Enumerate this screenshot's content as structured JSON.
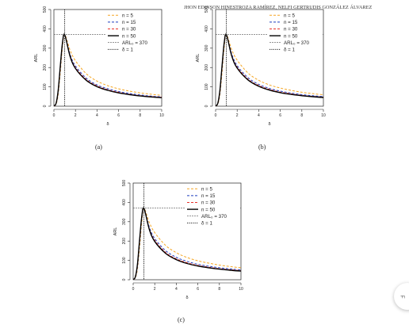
{
  "header": "JHON EDINSON HINESTROZA RAMÍREZ, NELFI GERTRUDIS GONZÁLEZ ÁLVAREZ",
  "side_widget": {
    "icon": "zoom-icon",
    "label": "F"
  },
  "colors": {
    "n5": "#f5a623",
    "n15": "#1f3fbf",
    "n30": "#e8332b",
    "n50": "#000000",
    "ref": "#555555"
  },
  "chart_data": [
    {
      "caption": "(a)",
      "type": "line",
      "xlabel": "δ",
      "ylabel": "ARL",
      "xlim": [
        0,
        10
      ],
      "ylim": [
        0,
        500
      ],
      "xticks": [
        0,
        2,
        4,
        6,
        8,
        10
      ],
      "yticks": [
        0,
        100,
        200,
        300,
        400,
        500
      ],
      "legend_position": "top-right",
      "legend": [
        "n = 5",
        "n = 15",
        "n = 30",
        "n = 50",
        "ARL₀ = 370",
        "δ = 1"
      ],
      "hline": 370,
      "vline": 1,
      "x": [
        0,
        0.2,
        0.4,
        0.6,
        0.8,
        1.0,
        1.5,
        2,
        3,
        4,
        5,
        6,
        7,
        8,
        9,
        10
      ],
      "series": [
        {
          "name": "n = 5",
          "values": [
            2,
            10,
            60,
            180,
            310,
            370,
            290,
            235,
            168,
            130,
            106,
            90,
            78,
            69,
            62,
            56
          ]
        },
        {
          "name": "n = 15",
          "values": [
            2,
            12,
            72,
            200,
            322,
            370,
            268,
            208,
            145,
            110,
            90,
            76,
            66,
            58,
            52,
            48
          ]
        },
        {
          "name": "n = 30",
          "values": [
            2,
            13,
            78,
            208,
            326,
            370,
            262,
            200,
            138,
            105,
            85,
            72,
            62,
            55,
            50,
            46
          ]
        },
        {
          "name": "n = 50",
          "values": [
            2,
            14,
            82,
            214,
            330,
            370,
            258,
            195,
            134,
            101,
            82,
            69,
            60,
            53,
            48,
            44
          ]
        }
      ]
    },
    {
      "caption": "(b)",
      "type": "line",
      "xlabel": "δ",
      "ylabel": "ARL",
      "xlim": [
        0,
        10
      ],
      "ylim": [
        0,
        500
      ],
      "xticks": [
        0,
        2,
        4,
        6,
        8,
        10
      ],
      "yticks": [
        0,
        100,
        200,
        300,
        400,
        500
      ],
      "legend_position": "top-right",
      "legend": [
        "n = 5",
        "n = 15",
        "n = 30",
        "n = 50",
        "ARL₀ = 370",
        "δ = 1"
      ],
      "hline": 370,
      "vline": 1,
      "x": [
        0,
        0.2,
        0.4,
        0.6,
        0.8,
        1.0,
        1.5,
        2,
        3,
        4,
        5,
        6,
        7,
        8,
        9,
        10
      ],
      "series": [
        {
          "name": "n = 5",
          "values": [
            2,
            10,
            58,
            176,
            306,
            370,
            292,
            238,
            172,
            134,
            110,
            94,
            82,
            72,
            65,
            59
          ]
        },
        {
          "name": "n = 15",
          "values": [
            2,
            12,
            70,
            198,
            320,
            370,
            270,
            210,
            148,
            113,
            92,
            78,
            68,
            60,
            54,
            50
          ]
        },
        {
          "name": "n = 30",
          "values": [
            2,
            13,
            77,
            206,
            325,
            370,
            263,
            202,
            140,
            107,
            87,
            73,
            64,
            56,
            51,
            47
          ]
        },
        {
          "name": "n = 50",
          "values": [
            2,
            14,
            81,
            212,
            329,
            370,
            259,
            197,
            136,
            103,
            83,
            70,
            61,
            54,
            49,
            45
          ]
        }
      ]
    },
    {
      "caption": "(c)",
      "type": "line",
      "xlabel": "δ",
      "ylabel": "ARL",
      "xlim": [
        0,
        10
      ],
      "ylim": [
        0,
        500
      ],
      "xticks": [
        0,
        2,
        4,
        6,
        8,
        10
      ],
      "yticks": [
        0,
        100,
        200,
        300,
        400,
        500
      ],
      "legend_position": "top-right",
      "legend": [
        "n = 5",
        "n = 15",
        "n = 30",
        "n = 50",
        "ARL₀ = 370",
        "δ = 1"
      ],
      "hline": 370,
      "vline": 1,
      "x": [
        0,
        0.2,
        0.4,
        0.6,
        0.8,
        1.0,
        1.5,
        2,
        3,
        4,
        5,
        6,
        7,
        8,
        9,
        10
      ],
      "series": [
        {
          "name": "n = 5",
          "values": [
            2,
            9,
            55,
            170,
            300,
            370,
            296,
            244,
            178,
            140,
            115,
            98,
            86,
            76,
            68,
            62
          ]
        },
        {
          "name": "n = 15",
          "values": [
            2,
            11,
            68,
            195,
            318,
            370,
            272,
            213,
            151,
            116,
            95,
            80,
            70,
            62,
            56,
            51
          ]
        },
        {
          "name": "n = 30",
          "values": [
            2,
            13,
            76,
            205,
            324,
            370,
            264,
            204,
            142,
            108,
            88,
            74,
            65,
            57,
            52,
            47
          ]
        },
        {
          "name": "n = 50",
          "values": [
            2,
            14,
            80,
            211,
            328,
            370,
            260,
            198,
            137,
            104,
            84,
            71,
            62,
            55,
            49,
            45
          ]
        }
      ]
    }
  ]
}
